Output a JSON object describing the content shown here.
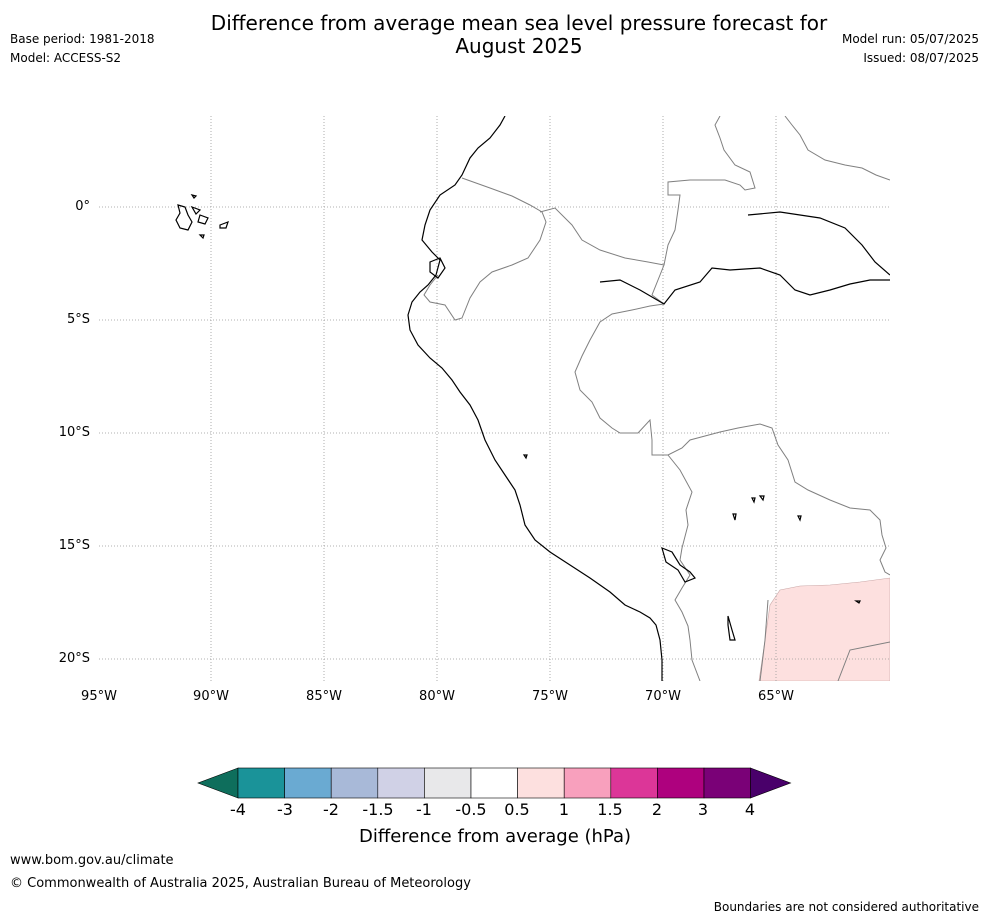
{
  "header": {
    "title_line1": "Difference from average mean sea level pressure forecast for",
    "title_line2": "August 2025",
    "base_period": "Base period: 1981-2018",
    "model": "Model: ACCESS-S2",
    "model_run": "Model run: 05/07/2025",
    "issued": "Issued: 08/07/2025"
  },
  "map": {
    "latitude_labels": [
      "0°",
      "5°S",
      "10°S",
      "15°S",
      "20°S"
    ],
    "longitude_labels": [
      "95°W",
      "90°W",
      "85°W",
      "80°W",
      "75°W",
      "70°W",
      "65°W"
    ],
    "colors": {
      "coastline": "#000000",
      "borders": "#808080",
      "gridlines": "#999999",
      "anomaly_fill": "#fde0df"
    }
  },
  "colorbar": {
    "label": "Difference from average (hPa)",
    "tick_labels": [
      "-4",
      "-3",
      "-2",
      "-1.5",
      "-1",
      "-0.5",
      "0.5",
      "1",
      "1.5",
      "2",
      "3",
      "4"
    ],
    "colors": [
      "#0e6e5c",
      "#1a9399",
      "#6aaad2",
      "#a8b9d8",
      "#d0d1e6",
      "#e8e8ea",
      "#ffffff",
      "#fde0df",
      "#f8a0bd",
      "#dc3698",
      "#ae017e",
      "#7a0177",
      "#49006a"
    ]
  },
  "footer": {
    "website": "www.bom.gov.au/climate",
    "copyright": "© Commonwealth of Australia 2025, Australian Bureau of Meteorology",
    "disclaimer": "Boundaries are not considered authoritative"
  }
}
